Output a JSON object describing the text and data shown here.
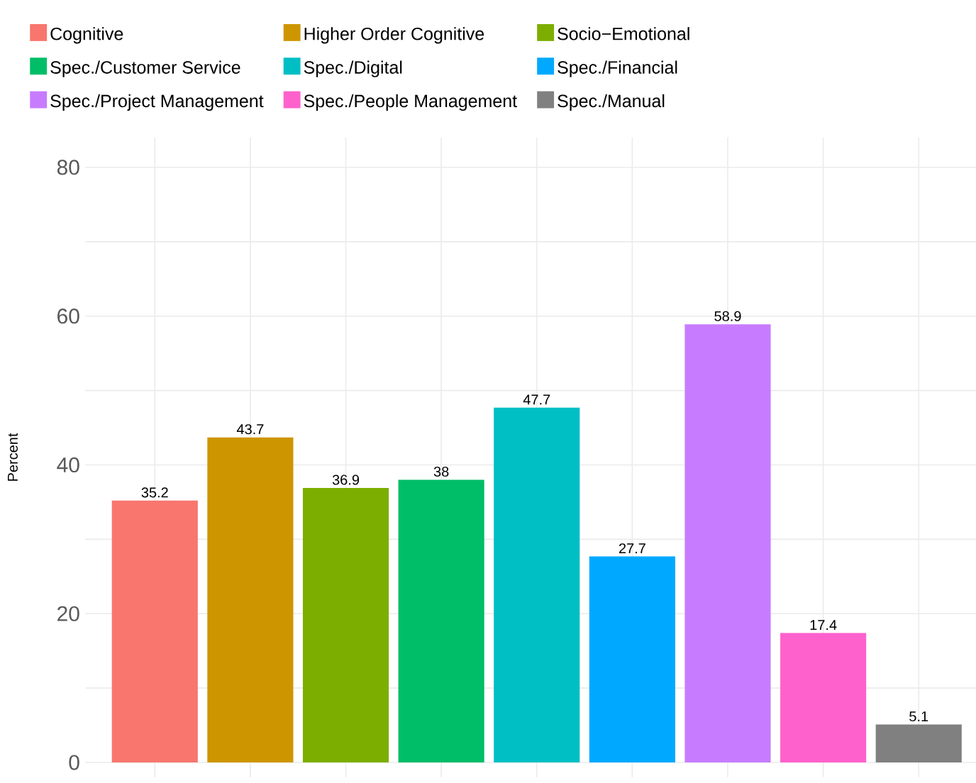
{
  "chart_data": {
    "type": "bar",
    "ylabel": "Percent",
    "stacked": true,
    "categories": [
      null,
      null,
      null,
      null,
      null,
      null,
      null,
      null,
      null
    ],
    "series": [
      {
        "name": "Cognitive",
        "color": "#f8766d",
        "values": [
          35.2,
          null,
          null,
          null,
          null,
          null,
          null,
          null,
          null
        ]
      },
      {
        "name": "Higher Order Cognitive",
        "color": "#cd9600",
        "values": [
          null,
          43.7,
          null,
          null,
          null,
          null,
          null,
          null,
          null
        ]
      },
      {
        "name": "Socio−Emotional",
        "color": "#7cae00",
        "values": [
          null,
          null,
          36.9,
          null,
          null,
          null,
          null,
          null,
          null
        ]
      },
      {
        "name": "Spec./Customer Service",
        "color": "#00be67",
        "values": [
          null,
          null,
          null,
          38,
          null,
          null,
          null,
          null,
          null
        ]
      },
      {
        "name": "Spec./Digital",
        "color": "#00bfc4",
        "values": [
          null,
          null,
          null,
          null,
          47.7,
          null,
          null,
          null,
          null
        ]
      },
      {
        "name": "Spec./Financial",
        "color": "#00a9ff",
        "values": [
          null,
          null,
          null,
          null,
          null,
          27.7,
          null,
          null,
          null
        ]
      },
      {
        "name": "Spec./Project Management",
        "color": "#c77cff",
        "values": [
          null,
          null,
          null,
          null,
          null,
          null,
          58.9,
          null,
          null
        ]
      },
      {
        "name": "Spec./People Management",
        "color": "#ff61cc",
        "values": [
          null,
          null,
          null,
          null,
          null,
          null,
          null,
          17.4,
          null
        ]
      },
      {
        "name": "Spec./Manual",
        "color": "#808080",
        "values": [
          null,
          null,
          null,
          null,
          null,
          null,
          null,
          null,
          5.1
        ]
      }
    ],
    "ylim": [
      -2,
      84
    ],
    "yticks": [
      0,
      {
        "value": 10,
        "label": null
      },
      20,
      {
        "value": 30,
        "label": null
      },
      40,
      {
        "value": 50,
        "label": null
      },
      60,
      {
        "value": 70,
        "label": null
      },
      80
    ],
    "grid": true,
    "data_labels": true,
    "legend": "top",
    "tick_labels": "y"
  }
}
